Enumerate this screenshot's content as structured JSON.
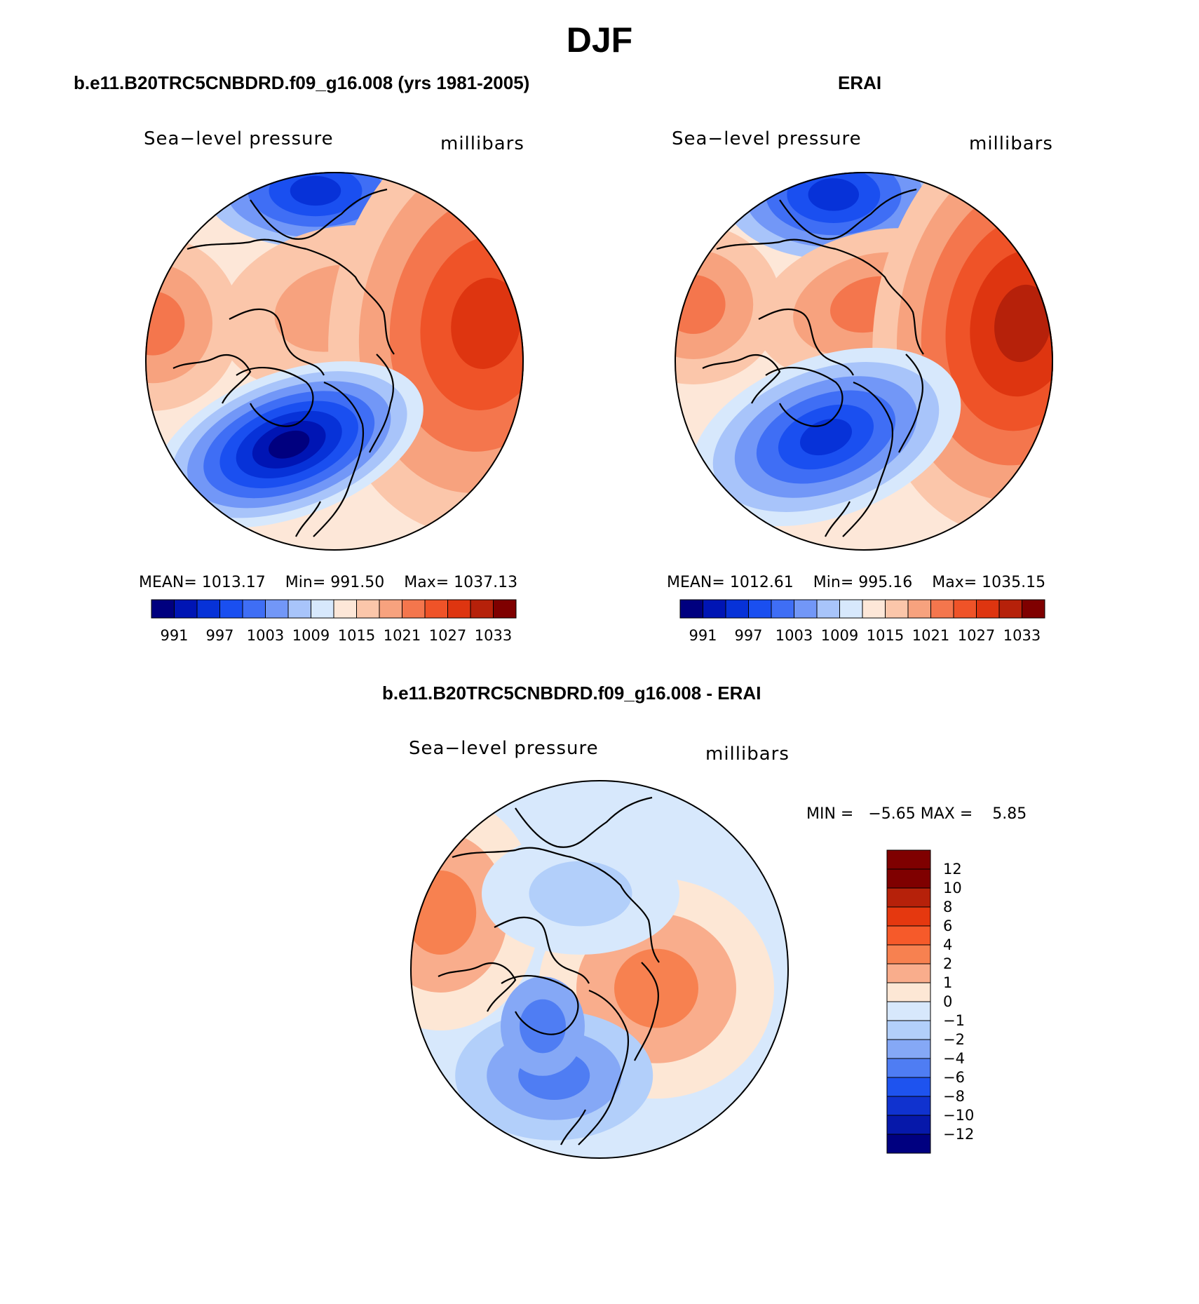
{
  "title": "DJF",
  "panels": [
    {
      "title": "b.e11.B20TRC5CNBDRD.f09_g16.008 (yrs 1981-2005)",
      "left_label": "Sea−level pressure",
      "right_label": "millibars",
      "stats": {
        "mean_label": "MEAN=",
        "mean": "1013.17",
        "min_label": "Min=",
        "min": "991.50",
        "max_label": "Max=",
        "max": "1037.13"
      },
      "colorbar_labels": [
        "991",
        "997",
        "1003",
        "1009",
        "1015",
        "1021",
        "1027",
        "1033"
      ]
    },
    {
      "title": "ERAI",
      "left_label": "Sea−level pressure",
      "right_label": "millibars",
      "stats": {
        "mean_label": "MEAN=",
        "mean": "1012.61",
        "min_label": "Min=",
        "min": "995.16",
        "max_label": "Max=",
        "max": "1035.15"
      },
      "colorbar_labels": [
        "991",
        "997",
        "1003",
        "1009",
        "1015",
        "1021",
        "1027",
        "1033"
      ]
    },
    {
      "title": "b.e11.B20TRC5CNBDRD.f09_g16.008 - ERAI",
      "left_label": "Sea−level pressure",
      "right_label": "millibars",
      "minmax": "MIN =   −5.65 MAX =    5.85",
      "colorbar_labels": [
        "12",
        "10",
        "8",
        "6",
        "4",
        "2",
        "1",
        "0",
        "−1",
        "−2",
        "−4",
        "−6",
        "−8",
        "−10",
        "−12"
      ]
    }
  ],
  "colors": {
    "abs_palette": [
      "#00007f",
      "#0015b4",
      "#0732d8",
      "#1a4ff0",
      "#3f6ef5",
      "#7297f7",
      "#a8c4fa",
      "#d7e8fc",
      "#fde7d8",
      "#fbc6aa",
      "#f7a27e",
      "#f4764d",
      "#ef5328",
      "#de3510",
      "#b6210a",
      "#7f0000"
    ],
    "diff_palette": [
      "#7f0000",
      "#b6210a",
      "#e5380f",
      "#f65a2a",
      "#f78150",
      "#f9ad8c",
      "#fde7d5",
      "#d7e8fc",
      "#b2cffa",
      "#85a8f6",
      "#4f7df3",
      "#1e53ef",
      "#1032cf",
      "#0618aa",
      "#000080"
    ]
  }
}
